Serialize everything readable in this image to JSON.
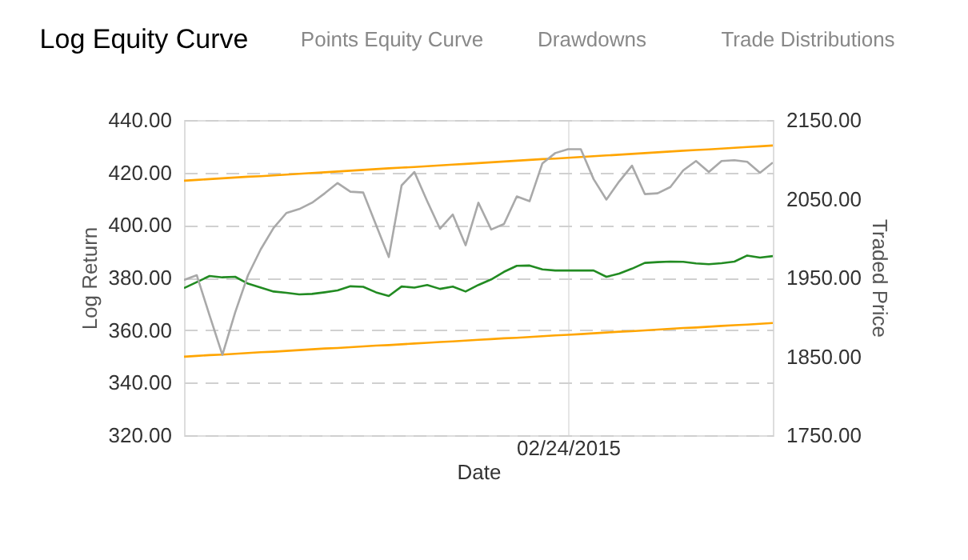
{
  "chart_data": {
    "type": "line",
    "title": "Log Equity Curve",
    "annotations": [
      "Points Equity Curve",
      "Drawdowns",
      "Trade Distributions"
    ],
    "xlabel": "Date",
    "ylabel": "Log Return",
    "y2label": "Traded Price",
    "categories": [
      null,
      null,
      null,
      null,
      null,
      null,
      null,
      null,
      null,
      null,
      null,
      null,
      null,
      null,
      null,
      null,
      null,
      null,
      null,
      null,
      null,
      null,
      null,
      null,
      null,
      null,
      null,
      null,
      null,
      null,
      "02/24/2015",
      null,
      null,
      null,
      null,
      null,
      null,
      null,
      null,
      null,
      null,
      null,
      null,
      null,
      null,
      null,
      null
    ],
    "ylim": [
      320,
      440
    ],
    "yticks": [
      {
        "value": 320,
        "label": "320.00"
      },
      {
        "value": 340,
        "label": "340.00"
      },
      {
        "value": 360,
        "label": "360.00"
      },
      {
        "value": 380,
        "label": "380.00"
      },
      {
        "value": 400,
        "label": "400.00"
      },
      {
        "value": 420,
        "label": "420.00"
      },
      {
        "value": 440,
        "label": "440.00"
      }
    ],
    "y2lim": [
      1750,
      2150
    ],
    "y2ticks": [
      {
        "value": 1750,
        "label": "1750.00"
      },
      {
        "value": 1850,
        "label": "1850.00"
      },
      {
        "value": 1950,
        "label": "1950.00"
      },
      {
        "value": 2050,
        "label": "2050.00"
      },
      {
        "value": 2150,
        "label": "2150.00"
      }
    ],
    "grid": true,
    "line_style": "solid",
    "marker": "none",
    "series": [
      {
        "color": "#a9a9a9",
        "axis": "y2",
        "values": [
          1947,
          1953,
          1902,
          1852,
          1906,
          1953,
          1986,
          2013,
          2032,
          2037,
          2045,
          2057,
          2070,
          2059,
          2058,
          2017,
          1976,
          2067,
          2084,
          2047,
          2012,
          2030,
          1991,
          2045,
          2011,
          2018,
          2053,
          2047,
          2095,
          2108,
          2113,
          2113,
          2075,
          2049,
          2072,
          2092,
          2056,
          2057,
          2065,
          2086,
          2098,
          2084,
          2098,
          2099,
          2097,
          2083,
          2096
        ]
      },
      {
        "color": "#228b22",
        "values": [
          376,
          378.3,
          380.6,
          380.1,
          380.3,
          377.7,
          376.2,
          374.7,
          374.2,
          373.6,
          373.8,
          374.4,
          375.1,
          376.7,
          376.5,
          374.4,
          373,
          376.6,
          376.2,
          377.2,
          375.7,
          376.6,
          374.7,
          377.2,
          379.3,
          382.2,
          384.5,
          384.6,
          383.1,
          382.7,
          382.7,
          382.7,
          382.7,
          380.3,
          381.5,
          383.4,
          385.6,
          385.9,
          386.1,
          386,
          385.4,
          385.1,
          385.5,
          386.1,
          388.4,
          387.6,
          388.2
        ]
      },
      {
        "color": "#ffa500",
        "values": [
          416.9,
          417.2,
          417.5,
          417.8,
          418.1,
          418.4,
          418.6,
          418.9,
          419.2,
          419.5,
          419.8,
          420.1,
          420.4,
          420.7,
          421.0,
          421.3,
          421.6,
          421.9,
          422.1,
          422.4,
          422.7,
          423.0,
          423.3,
          423.6,
          423.9,
          424.2,
          424.5,
          424.8,
          425.1,
          425.3,
          425.6,
          425.9,
          426.2,
          426.5,
          426.8,
          427.1,
          427.4,
          427.7,
          428.0,
          428.3,
          428.6,
          428.8,
          429.1,
          429.4,
          429.7,
          430.0,
          430.3
        ]
      },
      {
        "color": "#ffa500",
        "values": [
          349.9,
          350.2,
          350.5,
          350.7,
          351.0,
          351.3,
          351.6,
          351.8,
          352.1,
          352.4,
          352.7,
          353.0,
          353.2,
          353.5,
          353.8,
          354.1,
          354.3,
          354.6,
          354.9,
          355.2,
          355.5,
          355.7,
          356.0,
          356.3,
          356.6,
          356.9,
          357.1,
          357.4,
          357.7,
          358.0,
          358.2,
          358.5,
          358.8,
          359.1,
          359.4,
          359.6,
          359.9,
          360.2,
          360.5,
          360.8,
          361.0,
          361.3,
          361.6,
          361.9,
          362.1,
          362.4,
          362.7
        ]
      }
    ]
  }
}
